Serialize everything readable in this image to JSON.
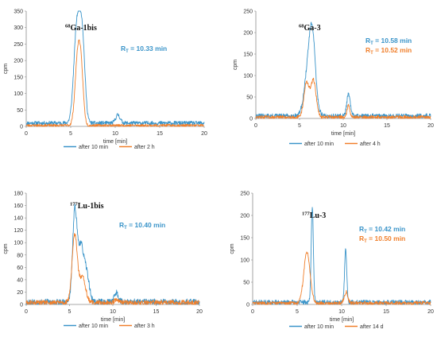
{
  "colors": {
    "series1": "#3a94c9",
    "series2": "#f07f2b",
    "axis": "#8c8c8c"
  },
  "chart_data": [
    {
      "type": "line",
      "title_sup": "68",
      "title_main": "Ga-1bis",
      "xlabel": "time [min]",
      "ylabel": "cpm",
      "xlim": [
        0,
        20
      ],
      "ylim": [
        0,
        350
      ],
      "xticks": [
        0,
        5,
        10,
        15,
        20
      ],
      "yticks": [
        0,
        50,
        100,
        150,
        200,
        250,
        300,
        350
      ],
      "xtick_labels": [
        "0",
        "5",
        "10",
        "15",
        "20"
      ],
      "ytick_labels": [
        "0",
        "50",
        "100",
        "150",
        "200",
        "250",
        "300",
        "350"
      ],
      "annotations": [
        {
          "text": "R",
          "sub": "T",
          "rest": " = 10.33 min",
          "series": 0
        }
      ],
      "series": [
        {
          "name": "after 10 min",
          "base": 10,
          "peaks": [
            [
              5.7,
              290,
              0.35
            ],
            [
              6.3,
              240,
              0.3
            ],
            [
              10.3,
              25,
              0.25
            ]
          ],
          "noise": 6,
          "seed": 11
        },
        {
          "name": "after 2 h",
          "base": 3,
          "peaks": [
            [
              5.8,
              210,
              0.3
            ],
            [
              6.2,
              120,
              0.25
            ]
          ],
          "noise": 4,
          "seed": 23
        }
      ]
    },
    {
      "type": "line",
      "title_sup": "68",
      "title_main": "Ga-3",
      "xlabel": "time [min]",
      "ylabel": "cpm",
      "xlim": [
        0,
        20
      ],
      "ylim": [
        0,
        250
      ],
      "xticks": [
        0,
        5,
        10,
        15,
        20
      ],
      "yticks": [
        0,
        50,
        100,
        150,
        200,
        250
      ],
      "xtick_labels": [
        "0",
        "5",
        "10",
        "15",
        "20"
      ],
      "ytick_labels": [
        "0",
        "50",
        "100",
        "150",
        "200",
        "250"
      ],
      "annotations": [
        {
          "text": "R",
          "sub": "T",
          "rest": " = 10.58 min",
          "series": 0
        },
        {
          "text": "R",
          "sub": "T",
          "rest": " = 10.52 min",
          "series": 1
        }
      ],
      "series": [
        {
          "name": "after 10 min",
          "base": 6,
          "peaks": [
            [
              6.2,
              150,
              0.5
            ],
            [
              6.5,
              80,
              0.3
            ],
            [
              10.6,
              50,
              0.2
            ]
          ],
          "noise": 5,
          "seed": 31
        },
        {
          "name": "after 4 h",
          "base": 3,
          "peaks": [
            [
              5.8,
              80,
              0.3
            ],
            [
              6.6,
              85,
              0.3
            ],
            [
              10.6,
              30,
              0.15
            ]
          ],
          "noise": 4,
          "seed": 47
        }
      ]
    },
    {
      "type": "line",
      "title_sup": "177",
      "title_main": "Lu-1bis",
      "xlabel": "time [min]",
      "ylabel": "cpm",
      "xlim": [
        0,
        20
      ],
      "ylim": [
        0,
        180
      ],
      "xticks": [
        0,
        5,
        10,
        15,
        20
      ],
      "yticks": [
        0,
        20,
        40,
        60,
        80,
        100,
        120,
        140,
        160,
        180
      ],
      "xtick_labels": [
        "0",
        "5",
        "10",
        "15",
        "20"
      ],
      "ytick_labels": [
        "0",
        "20",
        "40",
        "60",
        "80",
        "100",
        "120",
        "140",
        "160",
        "180"
      ],
      "annotations": [
        {
          "text": "R",
          "sub": "T",
          "rest": " = 10.40 min",
          "series": 0
        }
      ],
      "series": [
        {
          "name": "after 10 min",
          "base": 4,
          "peaks": [
            [
              5.6,
              140,
              0.25
            ],
            [
              6.3,
              90,
              0.35
            ],
            [
              7.0,
              40,
              0.3
            ],
            [
              10.4,
              15,
              0.25
            ]
          ],
          "noise": 5,
          "seed": 53
        },
        {
          "name": "after 3 h",
          "base": 3,
          "peaks": [
            [
              5.6,
              110,
              0.3
            ],
            [
              6.5,
              40,
              0.35
            ],
            [
              10.4,
              5,
              0.2
            ]
          ],
          "noise": 4,
          "seed": 61
        }
      ]
    },
    {
      "type": "line",
      "title_sup": "177",
      "title_main": "Lu-3",
      "xlabel": "time [min]",
      "ylabel": "cpm",
      "xlim": [
        0,
        20
      ],
      "ylim": [
        0,
        250
      ],
      "xticks": [
        0,
        5,
        10,
        15,
        20
      ],
      "yticks": [
        0,
        50,
        100,
        150,
        200,
        250
      ],
      "xtick_labels": [
        "0",
        "5",
        "10",
        "15",
        "20"
      ],
      "ytick_labels": [
        "0",
        "50",
        "100",
        "150",
        "200",
        "250"
      ],
      "annotations": [
        {
          "text": "R",
          "sub": "T",
          "rest": " = 10.42 min",
          "series": 0
        },
        {
          "text": "R",
          "sub": "T",
          "rest": " = 10.50 min",
          "series": 1
        }
      ],
      "series": [
        {
          "name": "after 10 min",
          "base": 5,
          "peaks": [
            [
              6.7,
              215,
              0.12
            ],
            [
              10.45,
              120,
              0.12
            ]
          ],
          "noise": 5,
          "seed": 71
        },
        {
          "name": "after 14 d",
          "base": 3,
          "peaks": [
            [
              6.1,
              115,
              0.35
            ],
            [
              10.5,
              25,
              0.2
            ]
          ],
          "noise": 4,
          "seed": 83
        }
      ]
    }
  ]
}
